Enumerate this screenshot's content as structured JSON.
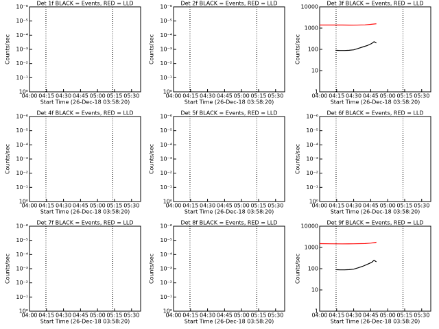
{
  "chart_data": [
    {
      "type": "line",
      "title": "Det 1f BLACK = Events, RED = LLD",
      "xlabel": "Start Time (26-Dec-18 03:58:20)",
      "ylabel": "Counts/sec",
      "log_y": true,
      "xlim": [
        0,
        98
      ],
      "xticks": [
        {
          "value": 0,
          "label": "04:00"
        },
        {
          "value": 15,
          "label": "04:15"
        },
        {
          "value": 30,
          "label": "04:30"
        },
        {
          "value": 45,
          "label": "04:45"
        },
        {
          "value": 60,
          "label": "05:00"
        },
        {
          "value": 75,
          "label": "05:15"
        },
        {
          "value": 90,
          "label": "05:30"
        }
      ],
      "ylim": [
        1,
        1e-06
      ],
      "yticks": [
        {
          "value": 1,
          "label": "10⁰"
        },
        {
          "value": 0.1,
          "label": "10⁻¹"
        },
        {
          "value": 0.01,
          "label": "10⁻²"
        },
        {
          "value": 0.001,
          "label": "10⁻³"
        },
        {
          "value": 0.0001,
          "label": "10⁻⁴"
        },
        {
          "value": 1e-05,
          "label": "10⁻⁵"
        },
        {
          "value": 1e-06,
          "label": "10⁻⁶"
        }
      ],
      "vlines": [
        14.5,
        73.5
      ],
      "series": []
    },
    {
      "type": "line",
      "title": "Det 2f BLACK = Events, RED = LLD",
      "xlabel": "Start Time (26-Dec-18 03:58:20)",
      "ylabel": "Counts/sec",
      "log_y": true,
      "xlim": [
        0,
        98
      ],
      "xticks": [
        {
          "value": 0,
          "label": "04:00"
        },
        {
          "value": 15,
          "label": "04:15"
        },
        {
          "value": 30,
          "label": "04:30"
        },
        {
          "value": 45,
          "label": "04:45"
        },
        {
          "value": 60,
          "label": "05:00"
        },
        {
          "value": 75,
          "label": "05:15"
        },
        {
          "value": 90,
          "label": "05:30"
        }
      ],
      "ylim": [
        1,
        1e-06
      ],
      "yticks": [
        {
          "value": 1,
          "label": "10⁰"
        },
        {
          "value": 0.1,
          "label": "10⁻¹"
        },
        {
          "value": 0.01,
          "label": "10⁻²"
        },
        {
          "value": 0.001,
          "label": "10⁻³"
        },
        {
          "value": 0.0001,
          "label": "10⁻⁴"
        },
        {
          "value": 1e-05,
          "label": "10⁻⁵"
        },
        {
          "value": 1e-06,
          "label": "10⁻⁶"
        }
      ],
      "vlines": [
        14.5,
        73.5
      ],
      "series": []
    },
    {
      "type": "line",
      "title": "Det 3f BLACK = Events, RED = LLD",
      "xlabel": "Start Time (26-Dec-18 03:58:20)",
      "ylabel": "Counts/sec",
      "log_y": true,
      "xlim": [
        0,
        98
      ],
      "xticks": [
        {
          "value": 0,
          "label": "04:00"
        },
        {
          "value": 15,
          "label": "04:15"
        },
        {
          "value": 30,
          "label": "04:30"
        },
        {
          "value": 45,
          "label": "04:45"
        },
        {
          "value": 60,
          "label": "05:00"
        },
        {
          "value": 75,
          "label": "05:15"
        },
        {
          "value": 90,
          "label": "05:30"
        }
      ],
      "ylim": [
        1,
        10000
      ],
      "yticks": [
        1,
        10,
        100,
        1000,
        10000
      ],
      "vlines": [
        14.5,
        73.5
      ],
      "series": [
        {
          "name": "LLD",
          "color": "#ff0000",
          "x": [
            0,
            10,
            20,
            30,
            40,
            45,
            50
          ],
          "values": [
            1400,
            1400,
            1400,
            1380,
            1420,
            1500,
            1600
          ]
        },
        {
          "name": "Events",
          "color": "#000000",
          "x": [
            14,
            18,
            22,
            26,
            30,
            34,
            38,
            42,
            46,
            48,
            50
          ],
          "values": [
            90,
            88,
            88,
            90,
            95,
            110,
            130,
            150,
            190,
            230,
            200
          ]
        }
      ]
    },
    {
      "type": "line",
      "title": "Det 4f BLACK = Events, RED = LLD",
      "xlabel": "Start Time (26-Dec-18 03:58:20)",
      "ylabel": "Counts/sec",
      "log_y": true,
      "xlim": [
        0,
        98
      ],
      "xticks": [
        {
          "value": 0,
          "label": "04:00"
        },
        {
          "value": 15,
          "label": "04:15"
        },
        {
          "value": 30,
          "label": "04:30"
        },
        {
          "value": 45,
          "label": "04:45"
        },
        {
          "value": 60,
          "label": "05:00"
        },
        {
          "value": 75,
          "label": "05:15"
        },
        {
          "value": 90,
          "label": "05:30"
        }
      ],
      "ylim": [
        1,
        1e-06
      ],
      "yticks": [
        {
          "value": 1,
          "label": "10⁰"
        },
        {
          "value": 0.1,
          "label": "10⁻¹"
        },
        {
          "value": 0.01,
          "label": "10⁻²"
        },
        {
          "value": 0.001,
          "label": "10⁻³"
        },
        {
          "value": 0.0001,
          "label": "10⁻⁴"
        },
        {
          "value": 1e-05,
          "label": "10⁻⁵"
        },
        {
          "value": 1e-06,
          "label": "10⁻⁶"
        }
      ],
      "vlines": [
        14.5,
        73.5
      ],
      "series": []
    },
    {
      "type": "line",
      "title": "Det 5f BLACK = Events, RED = LLD",
      "xlabel": "Start Time (26-Dec-18 03:58:20)",
      "ylabel": "Counts/sec",
      "log_y": true,
      "xlim": [
        0,
        98
      ],
      "xticks": [
        {
          "value": 0,
          "label": "04:00"
        },
        {
          "value": 15,
          "label": "04:15"
        },
        {
          "value": 30,
          "label": "04:30"
        },
        {
          "value": 45,
          "label": "04:45"
        },
        {
          "value": 60,
          "label": "05:00"
        },
        {
          "value": 75,
          "label": "05:15"
        },
        {
          "value": 90,
          "label": "05:30"
        }
      ],
      "ylim": [
        1,
        1e-06
      ],
      "yticks": [
        {
          "value": 1,
          "label": "10⁰"
        },
        {
          "value": 0.1,
          "label": "10⁻¹"
        },
        {
          "value": 0.01,
          "label": "10⁻²"
        },
        {
          "value": 0.001,
          "label": "10⁻³"
        },
        {
          "value": 0.0001,
          "label": "10⁻⁴"
        },
        {
          "value": 1e-05,
          "label": "10⁻⁵"
        },
        {
          "value": 1e-06,
          "label": "10⁻⁶"
        }
      ],
      "vlines": [
        14.5,
        73.5
      ],
      "series": []
    },
    {
      "type": "line",
      "title": "Det 6f BLACK = Events, RED = LLD",
      "xlabel": "Start Time (26-Dec-18 03:58:20)",
      "ylabel": "Counts/sec",
      "log_y": true,
      "xlim": [
        0,
        98
      ],
      "xticks": [
        {
          "value": 0,
          "label": "04:00"
        },
        {
          "value": 15,
          "label": "04:15"
        },
        {
          "value": 30,
          "label": "04:30"
        },
        {
          "value": 45,
          "label": "04:45"
        },
        {
          "value": 60,
          "label": "05:00"
        },
        {
          "value": 75,
          "label": "05:15"
        },
        {
          "value": 90,
          "label": "05:30"
        }
      ],
      "ylim": [
        1,
        1e-06
      ],
      "yticks": [
        {
          "value": 1,
          "label": "10⁰"
        },
        {
          "value": 0.1,
          "label": "10⁻¹"
        },
        {
          "value": 0.01,
          "label": "10⁻²"
        },
        {
          "value": 0.001,
          "label": "10⁻³"
        },
        {
          "value": 0.0001,
          "label": "10⁻⁴"
        },
        {
          "value": 1e-05,
          "label": "10⁻⁵"
        },
        {
          "value": 1e-06,
          "label": "10⁻⁶"
        }
      ],
      "vlines": [
        14.5,
        73.5
      ],
      "series": []
    },
    {
      "type": "line",
      "title": "Det 7f BLACK = Events, RED = LLD",
      "xlabel": "Start Time (26-Dec-18 03:58:20)",
      "ylabel": "Counts/sec",
      "log_y": true,
      "xlim": [
        0,
        98
      ],
      "xticks": [
        {
          "value": 0,
          "label": "04:00"
        },
        {
          "value": 15,
          "label": "04:15"
        },
        {
          "value": 30,
          "label": "04:30"
        },
        {
          "value": 45,
          "label": "04:45"
        },
        {
          "value": 60,
          "label": "05:00"
        },
        {
          "value": 75,
          "label": "05:15"
        },
        {
          "value": 90,
          "label": "05:30"
        }
      ],
      "ylim": [
        1,
        1e-06
      ],
      "yticks": [
        {
          "value": 1,
          "label": "10⁰"
        },
        {
          "value": 0.1,
          "label": "10⁻¹"
        },
        {
          "value": 0.01,
          "label": "10⁻²"
        },
        {
          "value": 0.001,
          "label": "10⁻³"
        },
        {
          "value": 0.0001,
          "label": "10⁻⁴"
        },
        {
          "value": 1e-05,
          "label": "10⁻⁵"
        },
        {
          "value": 1e-06,
          "label": "10⁻⁶"
        }
      ],
      "vlines": [
        14.5,
        73.5
      ],
      "series": []
    },
    {
      "type": "line",
      "title": "Det 8f BLACK = Events, RED = LLD",
      "xlabel": "Start Time (26-Dec-18 03:58:20)",
      "ylabel": "Counts/sec",
      "log_y": true,
      "xlim": [
        0,
        98
      ],
      "xticks": [
        {
          "value": 0,
          "label": "04:00"
        },
        {
          "value": 15,
          "label": "04:15"
        },
        {
          "value": 30,
          "label": "04:30"
        },
        {
          "value": 45,
          "label": "04:45"
        },
        {
          "value": 60,
          "label": "05:00"
        },
        {
          "value": 75,
          "label": "05:15"
        },
        {
          "value": 90,
          "label": "05:30"
        }
      ],
      "ylim": [
        1,
        1e-06
      ],
      "yticks": [
        {
          "value": 1,
          "label": "10⁰"
        },
        {
          "value": 0.1,
          "label": "10⁻¹"
        },
        {
          "value": 0.01,
          "label": "10⁻²"
        },
        {
          "value": 0.001,
          "label": "10⁻³"
        },
        {
          "value": 0.0001,
          "label": "10⁻⁴"
        },
        {
          "value": 1e-05,
          "label": "10⁻⁵"
        },
        {
          "value": 1e-06,
          "label": "10⁻⁶"
        }
      ],
      "vlines": [
        14.5,
        73.5
      ],
      "series": []
    },
    {
      "type": "line",
      "title": "Det 9f BLACK = Events, RED = LLD",
      "xlabel": "Start Time (26-Dec-18 03:58:20)",
      "ylabel": "Counts/sec",
      "log_y": true,
      "xlim": [
        0,
        98
      ],
      "xticks": [
        {
          "value": 0,
          "label": "04:00"
        },
        {
          "value": 15,
          "label": "04:15"
        },
        {
          "value": 30,
          "label": "04:30"
        },
        {
          "value": 45,
          "label": "04:45"
        },
        {
          "value": 60,
          "label": "05:00"
        },
        {
          "value": 75,
          "label": "05:15"
        },
        {
          "value": 90,
          "label": "05:30"
        }
      ],
      "ylim": [
        1,
        10000
      ],
      "yticks": [
        1,
        10,
        100,
        1000,
        10000
      ],
      "vlines": [
        14.5,
        73.5
      ],
      "series": [
        {
          "name": "LLD",
          "color": "#ff0000",
          "x": [
            0,
            10,
            20,
            30,
            40,
            45,
            50
          ],
          "values": [
            1500,
            1480,
            1470,
            1480,
            1520,
            1600,
            1750
          ]
        },
        {
          "name": "Events",
          "color": "#000000",
          "x": [
            14,
            18,
            22,
            26,
            30,
            34,
            38,
            42,
            46,
            48,
            50
          ],
          "values": [
            90,
            88,
            88,
            90,
            95,
            110,
            130,
            160,
            200,
            250,
            210
          ]
        }
      ]
    }
  ]
}
